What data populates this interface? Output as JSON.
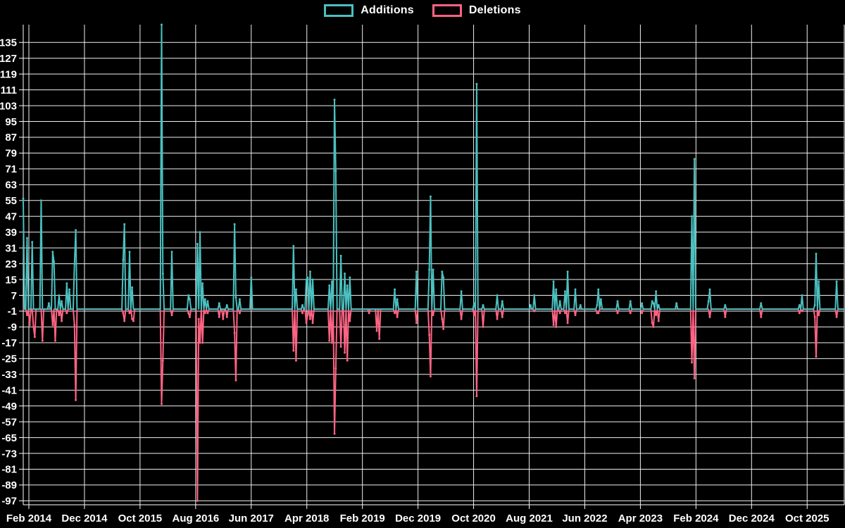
{
  "chart_data": {
    "type": "line",
    "title": "",
    "background": "#000000",
    "grid": true,
    "grid_color": "#efefef",
    "axis_color": "#ffffff",
    "label_color": "#ffffff",
    "legend_position": "top",
    "legend": [
      {
        "label": "Additions",
        "color": "#4bc0c0"
      },
      {
        "label": "Deletions",
        "color": "#ff6384"
      }
    ],
    "y_domain": [
      -99,
      144
    ],
    "baseline": 0,
    "y_ticks": [
      135,
      127,
      119,
      111,
      103,
      95,
      87,
      79,
      71,
      63,
      55,
      47,
      39,
      31,
      23,
      15,
      7,
      -1,
      -9,
      -17,
      -25,
      -33,
      -41,
      -49,
      -57,
      -65,
      -73,
      -81,
      -89,
      -97
    ],
    "x_ticks": [
      {
        "label": "Feb 2014",
        "week": 4.4
      },
      {
        "label": "Dec 2014",
        "week": 47.8
      },
      {
        "label": "Oct 2015",
        "week": 91.2
      },
      {
        "label": "Aug 2016",
        "week": 134.6
      },
      {
        "label": "Jun 2017",
        "week": 178.0
      },
      {
        "label": "Apr 2018",
        "week": 221.4
      },
      {
        "label": "Feb 2019",
        "week": 264.8
      },
      {
        "label": "Dec 2019",
        "week": 308.2
      },
      {
        "label": "Oct 2020",
        "week": 351.6
      },
      {
        "label": "Aug 2021",
        "week": 395.0
      },
      {
        "label": "Jun 2022",
        "week": 438.4
      },
      {
        "label": "Apr 2023",
        "week": 481.8
      },
      {
        "label": "Feb 2024",
        "week": 525.2
      },
      {
        "label": "Dec 2024",
        "week": 568.6
      },
      {
        "label": "Oct 2025",
        "week": 612.0
      }
    ],
    "weeks_total": 642,
    "series": [
      {
        "name": "Additions",
        "color": "#4bc0c0",
        "points": [
          [
            0,
            56
          ],
          [
            3,
            36
          ],
          [
            7,
            34
          ],
          [
            14,
            55
          ],
          [
            20,
            3
          ],
          [
            23,
            29
          ],
          [
            24,
            24
          ],
          [
            28,
            7
          ],
          [
            30,
            4
          ],
          [
            34,
            13
          ],
          [
            36,
            10
          ],
          [
            40,
            23
          ],
          [
            41,
            40
          ],
          [
            78,
            25
          ],
          [
            79,
            43
          ],
          [
            83,
            29
          ],
          [
            85,
            11
          ],
          [
            108,
            144
          ],
          [
            109,
            18
          ],
          [
            116,
            29
          ],
          [
            129,
            7
          ],
          [
            130,
            5
          ],
          [
            136,
            33
          ],
          [
            138,
            39
          ],
          [
            140,
            13
          ],
          [
            142,
            5
          ],
          [
            144,
            4
          ],
          [
            153,
            3
          ],
          [
            159,
            2
          ],
          [
            165,
            43
          ],
          [
            166,
            6
          ],
          [
            169,
            5
          ],
          [
            178,
            16
          ],
          [
            211,
            32
          ],
          [
            213,
            10
          ],
          [
            218,
            2
          ],
          [
            221,
            15
          ],
          [
            222,
            16
          ],
          [
            224,
            19
          ],
          [
            226,
            15
          ],
          [
            239,
            12
          ],
          [
            241,
            14
          ],
          [
            243,
            106
          ],
          [
            244,
            70
          ],
          [
            248,
            27
          ],
          [
            251,
            18
          ],
          [
            253,
            12
          ],
          [
            255,
            16
          ],
          [
            290,
            10
          ],
          [
            292,
            5
          ],
          [
            307,
            19
          ],
          [
            317,
            20
          ],
          [
            318,
            57
          ],
          [
            320,
            20
          ],
          [
            327,
            19
          ],
          [
            328,
            16
          ],
          [
            342,
            9
          ],
          [
            352,
            3
          ],
          [
            354,
            114
          ],
          [
            359,
            2
          ],
          [
            370,
            7
          ],
          [
            374,
            4
          ],
          [
            396,
            2
          ],
          [
            399,
            7
          ],
          [
            414,
            14
          ],
          [
            416,
            10
          ],
          [
            419,
            4
          ],
          [
            423,
            9
          ],
          [
            425,
            19
          ],
          [
            431,
            10
          ],
          [
            435,
            2
          ],
          [
            448,
            2
          ],
          [
            449,
            10
          ],
          [
            451,
            5
          ],
          [
            464,
            4
          ],
          [
            474,
            4
          ],
          [
            483,
            3
          ],
          [
            491,
            4
          ],
          [
            492,
            3
          ],
          [
            494,
            9
          ],
          [
            496,
            2
          ],
          [
            510,
            3
          ],
          [
            522,
            47
          ],
          [
            524,
            76
          ],
          [
            535,
            4
          ],
          [
            536,
            10
          ],
          [
            548,
            2
          ],
          [
            576,
            3
          ],
          [
            606,
            2
          ],
          [
            608,
            7
          ],
          [
            618,
            2
          ],
          [
            619,
            28
          ],
          [
            621,
            14
          ],
          [
            635,
            14
          ]
        ]
      },
      {
        "name": "Deletions",
        "color": "#ff6384",
        "points": [
          [
            3,
            -3
          ],
          [
            5,
            -8
          ],
          [
            8,
            -9
          ],
          [
            9,
            -14
          ],
          [
            15,
            -16
          ],
          [
            23,
            -8
          ],
          [
            25,
            -16
          ],
          [
            28,
            -3
          ],
          [
            30,
            -6
          ],
          [
            34,
            -2
          ],
          [
            40,
            -8
          ],
          [
            41,
            -46
          ],
          [
            78,
            -2
          ],
          [
            79,
            -6
          ],
          [
            83,
            -2
          ],
          [
            85,
            -5
          ],
          [
            86,
            -6
          ],
          [
            108,
            -48
          ],
          [
            109,
            -26
          ],
          [
            116,
            -3
          ],
          [
            129,
            -2
          ],
          [
            130,
            -4
          ],
          [
            136,
            -97
          ],
          [
            137,
            -5
          ],
          [
            138,
            -17
          ],
          [
            140,
            -17
          ],
          [
            142,
            -2
          ],
          [
            144,
            -2
          ],
          [
            153,
            -4
          ],
          [
            156,
            -5
          ],
          [
            159,
            -4
          ],
          [
            165,
            -12
          ],
          [
            166,
            -36
          ],
          [
            169,
            -2
          ],
          [
            211,
            -21
          ],
          [
            213,
            -26
          ],
          [
            218,
            -2
          ],
          [
            221,
            -7
          ],
          [
            222,
            -3
          ],
          [
            224,
            -5
          ],
          [
            226,
            -7
          ],
          [
            239,
            -16
          ],
          [
            241,
            -17
          ],
          [
            243,
            -63
          ],
          [
            244,
            -30
          ],
          [
            248,
            -19
          ],
          [
            251,
            -22
          ],
          [
            253,
            -26
          ],
          [
            255,
            -6
          ],
          [
            270,
            -2
          ],
          [
            276,
            -11
          ],
          [
            278,
            -15
          ],
          [
            290,
            -2
          ],
          [
            292,
            -4
          ],
          [
            307,
            -7
          ],
          [
            317,
            -13
          ],
          [
            318,
            -34
          ],
          [
            320,
            -3
          ],
          [
            327,
            -5
          ],
          [
            328,
            -10
          ],
          [
            342,
            -5
          ],
          [
            352,
            -3
          ],
          [
            354,
            -44
          ],
          [
            359,
            -9
          ],
          [
            370,
            -5
          ],
          [
            374,
            -4
          ],
          [
            399,
            -1
          ],
          [
            414,
            -8
          ],
          [
            416,
            -9
          ],
          [
            419,
            -2
          ],
          [
            423,
            -2
          ],
          [
            425,
            -7
          ],
          [
            431,
            -3
          ],
          [
            448,
            -2
          ],
          [
            449,
            -2
          ],
          [
            464,
            -2
          ],
          [
            474,
            -2
          ],
          [
            483,
            -2
          ],
          [
            491,
            -7
          ],
          [
            492,
            -9
          ],
          [
            494,
            -3
          ],
          [
            496,
            -6
          ],
          [
            522,
            -27
          ],
          [
            524,
            -35
          ],
          [
            536,
            -4
          ],
          [
            548,
            -4
          ],
          [
            576,
            -4
          ],
          [
            606,
            -2
          ],
          [
            608,
            -1
          ],
          [
            618,
            -4
          ],
          [
            619,
            -24
          ],
          [
            621,
            -3
          ],
          [
            635,
            -4
          ]
        ]
      }
    ]
  }
}
